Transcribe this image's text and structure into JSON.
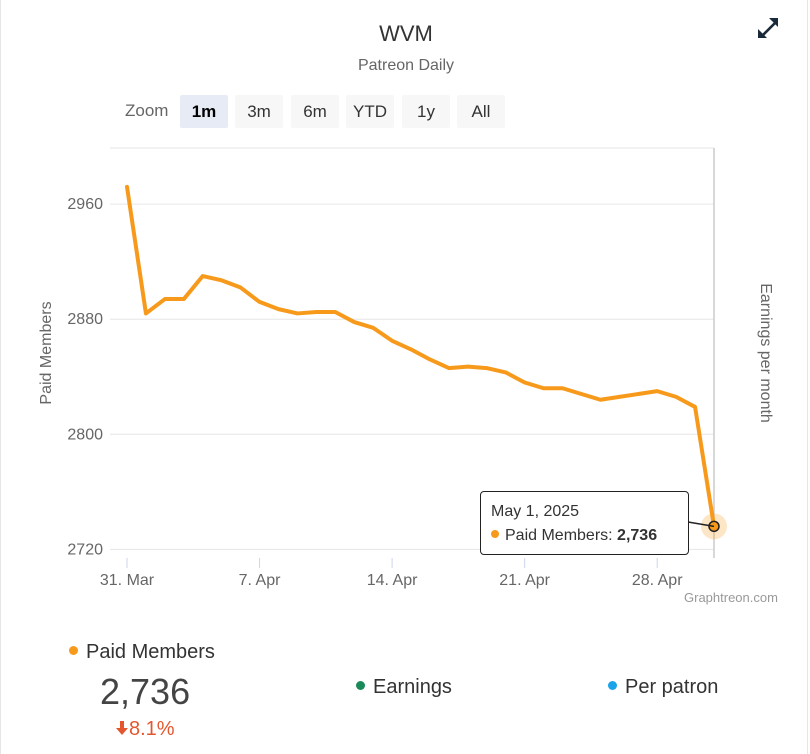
{
  "title": "WVM",
  "subtitle": "Patreon Daily",
  "zoom": {
    "label": "Zoom",
    "buttons": [
      "1m",
      "3m",
      "6m",
      "YTD",
      "1y",
      "All"
    ],
    "active": "1m"
  },
  "credit": "Graphtreon.com",
  "tooltip": {
    "date": "May 1, 2025",
    "series": "Paid Members:",
    "value": "2,736"
  },
  "summary": {
    "paid_members_label": "Paid Members",
    "paid_members_value": "2,736",
    "change": "8.1%",
    "earnings_label": "Earnings",
    "per_patron_label": "Per patron"
  },
  "colors": {
    "paid_members": "#f79a1c",
    "earnings": "#1a8a5a",
    "per_patron": "#1aa3e8",
    "decline": "#e4572e"
  },
  "icons": {
    "expand": "expand-arrows-icon",
    "down_arrow": "arrow-down-icon"
  },
  "chart_data": {
    "type": "line",
    "title": "WVM",
    "subtitle": "Patreon Daily",
    "ylabel": "Paid Members",
    "ylabel_right": "Earnings per month",
    "ylim": [
      2714,
      2999
    ],
    "yticks": [
      2720,
      2800,
      2880,
      2960
    ],
    "xtick_labels": [
      "31. Mar",
      "7. Apr",
      "14. Apr",
      "21. Apr",
      "28. Apr"
    ],
    "xtick_dates": [
      "2025-03-31",
      "2025-04-07",
      "2025-04-14",
      "2025-04-21",
      "2025-04-28"
    ],
    "x_range": [
      "2025-03-31",
      "2025-05-01"
    ],
    "grid": true,
    "series": [
      {
        "name": "Paid Members",
        "x": [
          "2025-03-31",
          "2025-04-01",
          "2025-04-02",
          "2025-04-03",
          "2025-04-04",
          "2025-04-05",
          "2025-04-06",
          "2025-04-07",
          "2025-04-08",
          "2025-04-09",
          "2025-04-10",
          "2025-04-11",
          "2025-04-12",
          "2025-04-13",
          "2025-04-14",
          "2025-04-15",
          "2025-04-16",
          "2025-04-17",
          "2025-04-18",
          "2025-04-19",
          "2025-04-20",
          "2025-04-21",
          "2025-04-22",
          "2025-04-23",
          "2025-04-24",
          "2025-04-25",
          "2025-04-26",
          "2025-04-27",
          "2025-04-28",
          "2025-04-29",
          "2025-04-30",
          "2025-05-01"
        ],
        "values": [
          2972,
          2884,
          2894,
          2894,
          2910,
          2907,
          2902,
          2892,
          2887,
          2884,
          2885,
          2885,
          2878,
          2874,
          2865,
          2859,
          2852,
          2846,
          2847,
          2846,
          2843,
          2836,
          2832,
          2832,
          2828,
          2824,
          2826,
          2828,
          2830,
          2826,
          2819,
          2736
        ]
      }
    ]
  }
}
